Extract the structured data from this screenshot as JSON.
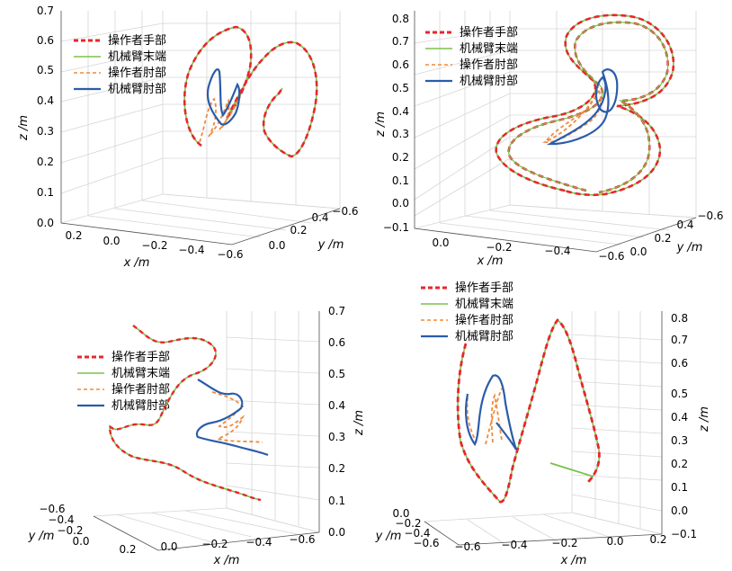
{
  "legend": {
    "hand": "操作者手部",
    "end": "机械臂末端",
    "elbow": "操作者肘部",
    "robot_elbow": "机械臂肘部"
  },
  "colors": {
    "hand": "#e8262d",
    "end": "#7cc24a",
    "elbow": "#f08a3c",
    "robot_elbow": "#2a5caa",
    "grid": "#d6d6d6"
  },
  "chart_data": [
    {
      "type": "line3d",
      "panel": "top-left",
      "xlabel": "x /m",
      "ylabel": "y /m",
      "zlabel": "z /m",
      "x_ticks": [
        "0.2",
        "0.0",
        "−0.2",
        "−0.4",
        "−0.6"
      ],
      "y_ticks": [
        "0.0",
        "0.2",
        "0.4",
        "−0.6"
      ],
      "z_ticks": [
        "0.0",
        "0.1",
        "0.2",
        "0.3",
        "0.4",
        "0.5",
        "0.6",
        "0.7"
      ],
      "zlim": [
        0.0,
        0.7
      ]
    },
    {
      "type": "line3d",
      "panel": "top-right",
      "xlabel": "x /m",
      "ylabel": "y /m",
      "zlabel": "z /m",
      "x_ticks": [
        "0.0",
        "−0.2",
        "−0.4",
        "−0.6"
      ],
      "y_ticks": [
        "0.0",
        "0.2",
        "0.4",
        "−0.6"
      ],
      "z_ticks": [
        "−0.1",
        "0.0",
        "0.1",
        "0.2",
        "0.3",
        "0.4",
        "0.5",
        "0.6",
        "0.7",
        "0.8"
      ],
      "zlim": [
        -0.1,
        0.8
      ]
    },
    {
      "type": "line3d",
      "panel": "bottom-left",
      "xlabel": "x /m",
      "ylabel": "y /m",
      "zlabel": "z /m",
      "x_ticks": [
        "0.2",
        "0.0",
        "−0.2",
        "−0.4",
        "−0.6"
      ],
      "y_ticks": [
        "−0.6",
        "−0.4",
        "−0.2",
        "0.0"
      ],
      "z_ticks": [
        "0.0",
        "0.1",
        "0.2",
        "0.3",
        "0.4",
        "0.5",
        "0.6",
        "0.7"
      ],
      "zlim": [
        0.0,
        0.7
      ]
    },
    {
      "type": "line3d",
      "panel": "bottom-right",
      "xlabel": "x /m",
      "ylabel": "y /m",
      "zlabel": "z /m",
      "x_ticks": [
        "−0.6",
        "−0.4",
        "−0.2",
        "0.0",
        "0.2"
      ],
      "y_ticks": [
        "0.0",
        "−0.2",
        "−0.4",
        "−0.6"
      ],
      "z_ticks": [
        "−0.1",
        "0.0",
        "0.1",
        "0.2",
        "0.3",
        "0.4",
        "0.5",
        "0.6",
        "0.7",
        "0.8"
      ],
      "zlim": [
        -0.1,
        0.8
      ]
    }
  ]
}
